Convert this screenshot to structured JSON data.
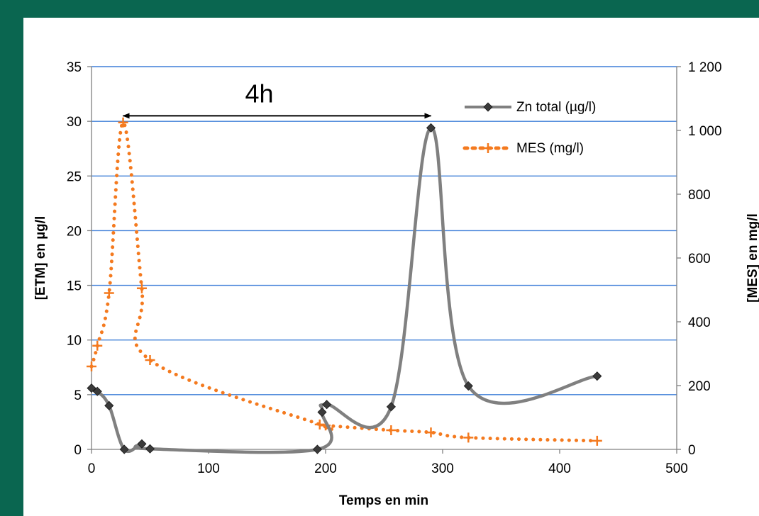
{
  "colors": {
    "frame": "#0a6650",
    "background": "#ffffff",
    "gridline": "#3f7fd8",
    "zn_series": "#808080",
    "zn_marker": "#3a3a3a",
    "mes_series": "#f47a1f"
  },
  "chart_data": {
    "type": "line",
    "xlabel": "Temps en min",
    "ylabel_left": "[ETM] en µg/l",
    "ylabel_right": "[MES] en mg/l",
    "xlim": [
      0,
      500
    ],
    "ylim_left": [
      0,
      35
    ],
    "ylim_right": [
      0,
      1200
    ],
    "x_ticks": [
      "0",
      "100",
      "200",
      "300",
      "400",
      "500"
    ],
    "y_ticks_left": [
      "0",
      "5",
      "10",
      "15",
      "20",
      "25",
      "30",
      "35"
    ],
    "y_ticks_right": [
      "0",
      "200",
      "400",
      "600",
      "800",
      "1 000",
      "1 200"
    ],
    "grid": "horizontal",
    "legend_position": "top-right",
    "annotation": {
      "text": "4h",
      "arrow_from_x": 27,
      "arrow_to_x": 290,
      "arrow_y": 30.5
    },
    "series": [
      {
        "name": "Zn total (µg/l)",
        "axis": "left",
        "style": "solid-smooth",
        "marker": "diamond",
        "points": [
          [
            0,
            5.6
          ],
          [
            5,
            5.3
          ],
          [
            15,
            4.0
          ],
          [
            28,
            0.0
          ],
          [
            43,
            0.5
          ],
          [
            50,
            0.05
          ],
          [
            193,
            0.0
          ],
          [
            197,
            3.4
          ],
          [
            201,
            4.1
          ],
          [
            256,
            3.9
          ],
          [
            290,
            29.4
          ],
          [
            322,
            5.8
          ],
          [
            432,
            6.7
          ]
        ]
      },
      {
        "name": "MES (mg/l)",
        "axis": "right",
        "style": "dotted-smooth",
        "marker": "plus",
        "points": [
          [
            0,
            260
          ],
          [
            5,
            325
          ],
          [
            15,
            490
          ],
          [
            27,
            1025
          ],
          [
            43,
            505
          ],
          [
            50,
            280
          ],
          [
            195,
            78
          ],
          [
            200,
            75
          ],
          [
            256,
            60
          ],
          [
            290,
            53
          ],
          [
            322,
            37
          ],
          [
            432,
            27
          ]
        ]
      }
    ]
  }
}
